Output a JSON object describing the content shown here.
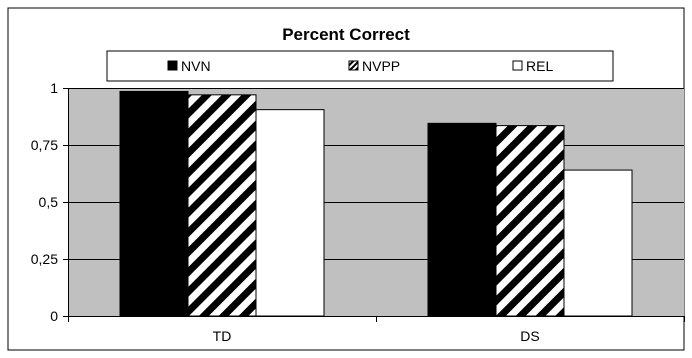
{
  "chart_data": {
    "type": "bar",
    "title": "Percent Correct",
    "categories": [
      "TD",
      "DS"
    ],
    "series": [
      {
        "name": "NVN",
        "values": [
          0.985,
          0.845
        ],
        "pattern": "solid-black"
      },
      {
        "name": "NVPP",
        "values": [
          0.97,
          0.835
        ],
        "pattern": "diagonal-stripes"
      },
      {
        "name": "REL",
        "values": [
          0.905,
          0.64
        ],
        "pattern": "white"
      }
    ],
    "y_ticks": [
      "0",
      "0,25",
      "0,5",
      "0,75",
      "1"
    ],
    "y_tick_values": [
      0,
      0.25,
      0.5,
      0.75,
      1
    ],
    "ylim": [
      0,
      1
    ],
    "xlabel": "",
    "ylabel": "",
    "grid": true,
    "legend_position": "top",
    "colors": {
      "plot_background": "#c0c0c0",
      "bar_black": "#000000",
      "bar_white": "#ffffff",
      "stripe": "#000000",
      "frame": "#000000"
    }
  }
}
